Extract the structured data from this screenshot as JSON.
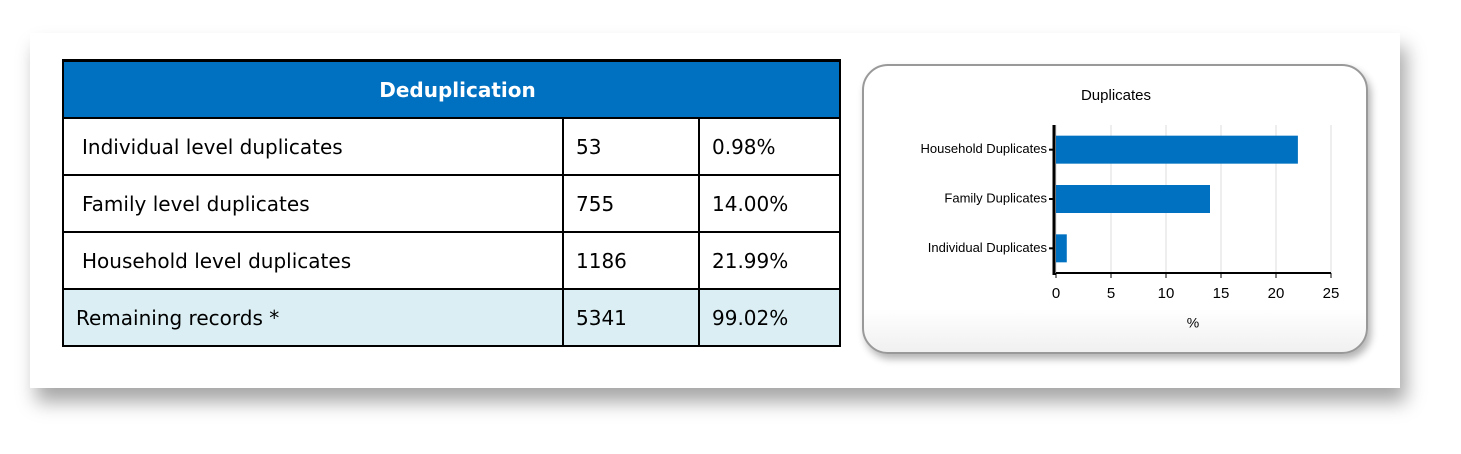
{
  "table": {
    "title": "Deduplication",
    "rows": [
      [
        "Individual level duplicates",
        "53",
        "0.98%"
      ],
      [
        "Family level duplicates",
        "755",
        "14.00%"
      ],
      [
        "Household level duplicates",
        "1186",
        "21.99%"
      ],
      [
        "Remaining records *",
        "5341",
        "99.02%"
      ]
    ]
  },
  "chart_data": {
    "type": "bar",
    "orientation": "horizontal",
    "title": "Duplicates",
    "xlabel": "%",
    "categories": [
      "Household Duplicates",
      "Family Duplicates",
      "Individual Duplicates"
    ],
    "values": [
      21.99,
      14.0,
      0.98
    ],
    "color": "#0070c0",
    "xlim": [
      0,
      25
    ],
    "xticks": [
      0,
      5,
      10,
      15,
      20,
      25
    ],
    "grid": true
  }
}
